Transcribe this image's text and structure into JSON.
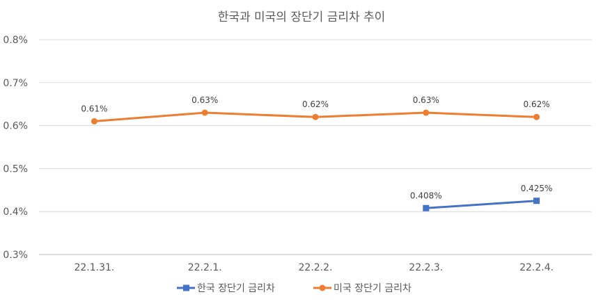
{
  "chart_data": {
    "type": "line",
    "title": "한국과 미국의 장단기 금리차 추이",
    "categories": [
      "22.1.31.",
      "22.2.1.",
      "22.2.2.",
      "22.2.3.",
      "22.2.4."
    ],
    "yticks": [
      "0.3%",
      "0.4%",
      "0.5%",
      "0.6%",
      "0.7%",
      "0.8%"
    ],
    "ylim": [
      0.3,
      0.8
    ],
    "grid": true,
    "legend_position": "bottom",
    "series": [
      {
        "name": "한국 장단기 금리차",
        "color": "#4472C4",
        "marker": "square",
        "values": [
          null,
          null,
          null,
          0.408,
          0.425
        ],
        "labels": [
          null,
          null,
          null,
          "0.408%",
          "0.425%"
        ]
      },
      {
        "name": "미국 장단기 금리차",
        "color": "#ED7D31",
        "marker": "circle",
        "values": [
          0.61,
          0.63,
          0.62,
          0.63,
          0.62
        ],
        "labels": [
          "0.61%",
          "0.63%",
          "0.62%",
          "0.63%",
          "0.62%"
        ]
      }
    ]
  }
}
